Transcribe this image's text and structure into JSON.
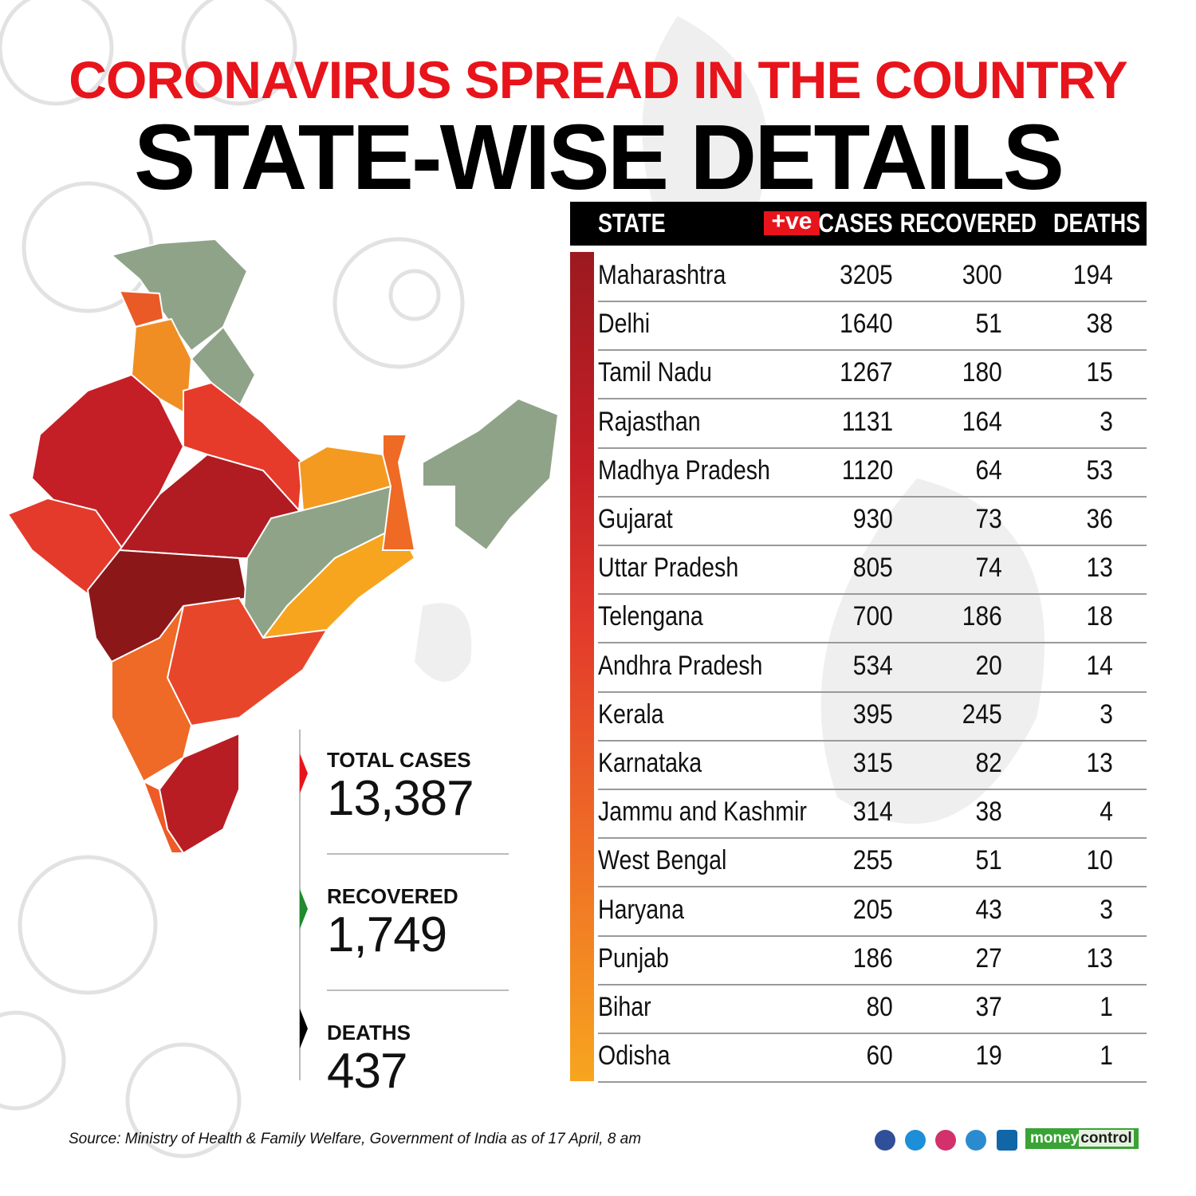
{
  "header": {
    "title": "CORONAVIRUS SPREAD IN THE COUNTRY",
    "subtitle": "STATE-WISE DETAILS"
  },
  "table": {
    "columns": {
      "state": "STATE",
      "badge": "+ve",
      "cases": "CASES",
      "recovered": "RECOVERED",
      "deaths": "DEATHS"
    },
    "rows": [
      [
        "Maharashtra",
        3205,
        300,
        194
      ],
      [
        "Delhi",
        1640,
        51,
        38
      ],
      [
        "Tamil Nadu",
        1267,
        180,
        15
      ],
      [
        "Rajasthan",
        1131,
        164,
        3
      ],
      [
        "Madhya Pradesh",
        1120,
        64,
        53
      ],
      [
        "Gujarat",
        930,
        73,
        36
      ],
      [
        "Uttar Pradesh",
        805,
        74,
        13
      ],
      [
        "Telengana",
        700,
        186,
        18
      ],
      [
        "Andhra Pradesh",
        534,
        20,
        14
      ],
      [
        "Kerala",
        395,
        245,
        3
      ],
      [
        "Karnataka",
        315,
        82,
        13
      ],
      [
        "Jammu and Kashmir",
        314,
        38,
        4
      ],
      [
        "West Bengal",
        255,
        51,
        10
      ],
      [
        "Haryana",
        205,
        43,
        3
      ],
      [
        "Punjab",
        186,
        27,
        13
      ],
      [
        "Bihar",
        80,
        37,
        1
      ],
      [
        "Odisha",
        60,
        19,
        1
      ]
    ]
  },
  "totals": [
    {
      "label": "TOTAL CASES",
      "value": "13,387"
    },
    {
      "label": "RECOVERED",
      "value": "1,749"
    },
    {
      "label": "DEATHS",
      "value": "437"
    }
  ],
  "footer": {
    "source": "Source: Ministry of Health & Family Welfare, Government of India as of 17 April, 8 am",
    "brand_a": "money",
    "brand_b": "control"
  }
}
